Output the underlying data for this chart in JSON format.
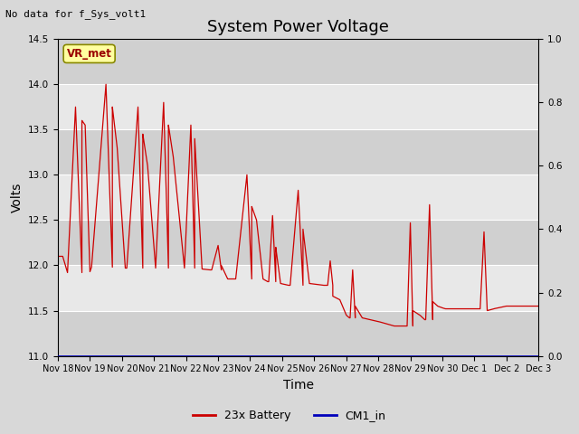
{
  "title": "System Power Voltage",
  "subtitle": "No data for f_Sys_volt1",
  "xlabel": "Time",
  "ylabel": "Volts",
  "ylim_left": [
    11.0,
    14.5
  ],
  "ylim_right": [
    0.0,
    1.0
  ],
  "yticks_left": [
    11.0,
    11.5,
    12.0,
    12.5,
    13.0,
    13.5,
    14.0,
    14.5
  ],
  "yticks_right": [
    0.0,
    0.2,
    0.4,
    0.6,
    0.8,
    1.0
  ],
  "fig_bg_color": "#d8d8d8",
  "plot_bg_color": "#e8e8e8",
  "plot_bg_dark": "#d0d0d0",
  "line_color_battery": "#cc0000",
  "line_color_cm1": "#0000bb",
  "legend_labels": [
    "23x Battery",
    "CM1_in"
  ],
  "vr_met_label": "VR_met",
  "vr_met_bg": "#ffffa0",
  "vr_met_border": "#888800",
  "x_tick_labels": [
    "Nov 18",
    "Nov 19",
    "Nov 20",
    "Nov 21",
    "Nov 22",
    "Nov 23",
    "Nov 24",
    "Nov 25",
    "Nov 26",
    "Nov 27",
    "Nov 28",
    "Nov 29",
    "Nov 30",
    "Dec 1",
    "Dec 2",
    "Dec 3"
  ],
  "title_fontsize": 13,
  "label_fontsize": 10,
  "tick_fontsize": 7.5
}
